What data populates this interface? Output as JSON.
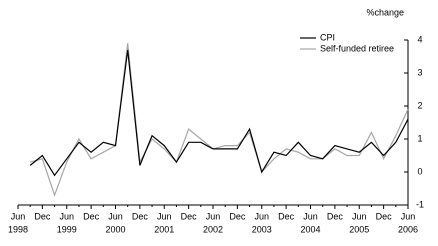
{
  "chart_data": {
    "type": "line",
    "y_axis_label": "%change",
    "categories": [
      "Jun",
      null,
      "Dec",
      null,
      "Jun",
      null,
      "Dec",
      null,
      "Jun",
      null,
      "Dec",
      null,
      "Jun",
      null,
      "Dec",
      null,
      "Jun",
      null,
      "Dec",
      null,
      "Jun",
      null,
      "Dec",
      null,
      "Jun",
      null,
      "Dec",
      null,
      "Jun",
      null,
      "Dec",
      null,
      "Jun"
    ],
    "category_years": [
      "1998",
      null,
      null,
      null,
      "1999",
      null,
      null,
      null,
      "2000",
      null,
      null,
      null,
      "2001",
      null,
      null,
      null,
      "2002",
      null,
      null,
      null,
      "2003",
      null,
      null,
      null,
      "2004",
      null,
      null,
      null,
      "2005",
      null,
      null,
      null,
      "2006"
    ],
    "series": [
      {
        "name": "CPI",
        "color": "#000000",
        "values": [
          null,
          0.2,
          0.5,
          -0.1,
          0.4,
          0.9,
          0.6,
          0.9,
          0.8,
          3.7,
          0.2,
          1.1,
          0.8,
          0.3,
          0.9,
          0.9,
          0.7,
          0.7,
          0.7,
          1.3,
          0.0,
          0.6,
          0.5,
          0.9,
          0.5,
          0.4,
          0.8,
          0.7,
          0.6,
          0.9,
          0.5,
          0.9,
          1.6
        ]
      },
      {
        "name": "Self-funded retiree",
        "color": "#a6a6a6",
        "values": [
          null,
          0.3,
          0.4,
          -0.7,
          0.3,
          1.0,
          0.4,
          0.6,
          0.8,
          3.9,
          0.3,
          1.0,
          0.7,
          0.3,
          1.3,
          1.0,
          0.7,
          0.8,
          0.8,
          1.2,
          0.0,
          0.4,
          0.7,
          0.6,
          0.4,
          0.4,
          0.7,
          0.5,
          0.5,
          1.2,
          0.4,
          1.1,
          1.9
        ]
      }
    ],
    "ylim": [
      -1,
      4
    ],
    "yticks": [
      -1,
      0,
      1,
      2,
      3,
      4
    ],
    "y_axis_side": "right",
    "legend": "top-right"
  }
}
